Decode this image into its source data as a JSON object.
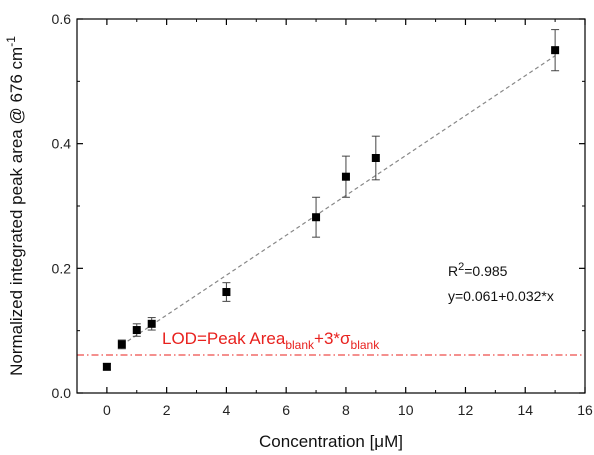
{
  "chart_data": {
    "type": "scatter",
    "title": "",
    "xlabel": "Concentration [μM]",
    "ylabel": "Normalized integrated peak area @ 676 cm",
    "ylabel_sup": "-1",
    "xlim": [
      -1,
      16
    ],
    "ylim": [
      0,
      0.6
    ],
    "x_ticks": [
      0,
      2,
      4,
      6,
      8,
      10,
      12,
      14,
      16
    ],
    "y_ticks": [
      0.0,
      0.2,
      0.4,
      0.6
    ],
    "y_tick_labels": [
      "0.0",
      "0.2",
      "0.4",
      "0.6"
    ],
    "grid": false,
    "series": [
      {
        "marker": "square",
        "color": "#000000",
        "points": [
          {
            "x": 0,
            "y": 0.042,
            "err": 0.005
          },
          {
            "x": 0.5,
            "y": 0.078,
            "err": 0.007
          },
          {
            "x": 1,
            "y": 0.101,
            "err": 0.01
          },
          {
            "x": 1.5,
            "y": 0.111,
            "err": 0.01
          },
          {
            "x": 4,
            "y": 0.162,
            "err": 0.015
          },
          {
            "x": 7,
            "y": 0.282,
            "err": 0.032
          },
          {
            "x": 8,
            "y": 0.347,
            "err": 0.033
          },
          {
            "x": 9,
            "y": 0.377,
            "err": 0.035
          },
          {
            "x": 15,
            "y": 0.55,
            "err": 0.033
          }
        ]
      }
    ],
    "fit_line": {
      "intercept": 0.061,
      "slope": 0.032,
      "x_range": [
        0.5,
        15
      ],
      "color": "#888888",
      "style": "dashed"
    },
    "lod_line": {
      "y": 0.061,
      "color": "#e8211e",
      "style": "dash-dot"
    },
    "annotations": {
      "r2_base": "R",
      "r2_sup": "2",
      "r2_value": "=0.985",
      "equation": "y=0.061+0.032*x",
      "lod_main": "LOD=Peak Area",
      "lod_sub1": "blank",
      "lod_mid": "+3*σ",
      "lod_sub2": "blank"
    }
  }
}
